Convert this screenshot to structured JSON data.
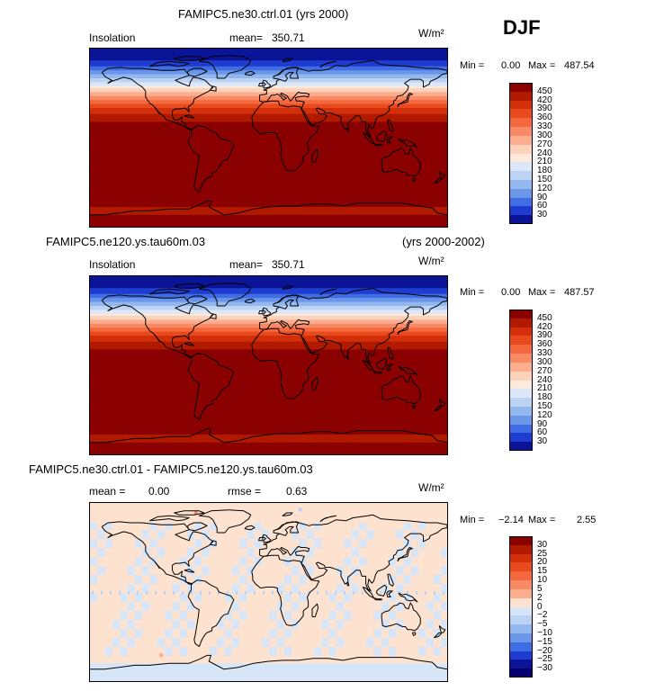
{
  "season": "DJF",
  "panels": [
    {
      "title": "FAMIPC5.ne30.ctrl.01 (yrs 2000)",
      "title_right": "",
      "variable": "Insolation",
      "stat1_label": "mean=",
      "stat1_value": "350.71",
      "stat2_label": "",
      "stat2_value": "",
      "units": "W/m²",
      "min_label": "Min =",
      "min_value": "0.00",
      "max_label": "Max =",
      "max_value": "487.54",
      "colorbar_labels": [
        "450",
        "420",
        "390",
        "360",
        "330",
        "300",
        "270",
        "240",
        "210",
        "180",
        "150",
        "120",
        "90",
        "60",
        "30"
      ],
      "colorbar_colors": [
        "#8b0000",
        "#b21a00",
        "#d22f0a",
        "#e84a1e",
        "#f4683d",
        "#f98a66",
        "#fbad8e",
        "#fcd2ba",
        "#fdeadc",
        "#dce8f8",
        "#bcd3f4",
        "#93b8ef",
        "#6b96ea",
        "#3f6ee4",
        "#1f3cd0",
        "#0b1496"
      ]
    },
    {
      "title": "FAMIPC5.ne120.ys.tau60m.03",
      "title_right": "(yrs 2000-2002)",
      "variable": "Insolation",
      "stat1_label": "mean=",
      "stat1_value": "350.71",
      "stat2_label": "",
      "stat2_value": "",
      "units": "W/m²",
      "min_label": "Min =",
      "min_value": "0.00",
      "max_label": "Max =",
      "max_value": "487.57",
      "colorbar_labels": [
        "450",
        "420",
        "390",
        "360",
        "330",
        "300",
        "270",
        "240",
        "210",
        "180",
        "150",
        "120",
        "90",
        "60",
        "30"
      ],
      "colorbar_colors": [
        "#8b0000",
        "#b21a00",
        "#d22f0a",
        "#e84a1e",
        "#f4683d",
        "#f98a66",
        "#fbad8e",
        "#fcd2ba",
        "#fdeadc",
        "#dce8f8",
        "#bcd3f4",
        "#93b8ef",
        "#6b96ea",
        "#3f6ee4",
        "#1f3cd0",
        "#0b1496"
      ]
    },
    {
      "title": "FAMIPC5.ne30.ctrl.01 - FAMIPC5.ne120.ys.tau60m.03",
      "title_right": "",
      "variable": "",
      "stat1_label": "mean =",
      "stat1_value": "0.00",
      "stat2_label": "rmse =",
      "stat2_value": "0.63",
      "units": "W/m²",
      "min_label": "Min =",
      "min_value": "−2.14",
      "max_label": "Max =",
      "max_value": "2.55",
      "colorbar_labels": [
        "30",
        "25",
        "20",
        "15",
        "10",
        "5",
        "2",
        "0",
        "−2",
        "−5",
        "−10",
        "−15",
        "−20",
        "−25",
        "−30"
      ],
      "colorbar_colors": [
        "#8b0000",
        "#b21a00",
        "#d22f0a",
        "#e84a1e",
        "#f4683d",
        "#f98a66",
        "#fbad8e",
        "#fde2cf",
        "#d6e6f8",
        "#bcd3f4",
        "#93b8ef",
        "#6b96ea",
        "#3f6ee4",
        "#1f3cd0",
        "#0b1496",
        "#05006e"
      ]
    }
  ],
  "chart_data": [
    {
      "type": "heatmap",
      "title": "FAMIPC5.ne30.ctrl.01 (yrs 2000)",
      "variable": "Insolation",
      "season": "DJF",
      "units": "W/m²",
      "mean": 350.71,
      "min": 0.0,
      "max": 487.54,
      "levels": [
        30,
        60,
        90,
        120,
        150,
        180,
        210,
        240,
        270,
        300,
        330,
        360,
        390,
        420,
        450
      ],
      "latitude_bands_north_to_south": [
        {
          "lat": 90,
          "value": 5
        },
        {
          "lat": 80,
          "value": 20
        },
        {
          "lat": 70,
          "value": 75
        },
        {
          "lat": 60,
          "value": 150
        },
        {
          "lat": 50,
          "value": 235
        },
        {
          "lat": 40,
          "value": 315
        },
        {
          "lat": 30,
          "value": 385
        },
        {
          "lat": 20,
          "value": 435
        },
        {
          "lat": 10,
          "value": 465
        },
        {
          "lat": 0,
          "value": 470
        },
        {
          "lat": -30,
          "value": 475
        },
        {
          "lat": -60,
          "value": 465
        },
        {
          "lat": -75,
          "value": 440
        },
        {
          "lat": -90,
          "value": 480
        }
      ]
    },
    {
      "type": "heatmap",
      "title": "FAMIPC5.ne120.ys.tau60m.03 (yrs 2000-2002)",
      "variable": "Insolation",
      "season": "DJF",
      "units": "W/m²",
      "mean": 350.71,
      "min": 0.0,
      "max": 487.57,
      "levels": [
        30,
        60,
        90,
        120,
        150,
        180,
        210,
        240,
        270,
        300,
        330,
        360,
        390,
        420,
        450
      ],
      "latitude_bands_north_to_south": [
        {
          "lat": 90,
          "value": 5
        },
        {
          "lat": 80,
          "value": 20
        },
        {
          "lat": 70,
          "value": 75
        },
        {
          "lat": 60,
          "value": 150
        },
        {
          "lat": 50,
          "value": 235
        },
        {
          "lat": 40,
          "value": 315
        },
        {
          "lat": 30,
          "value": 385
        },
        {
          "lat": 20,
          "value": 435
        },
        {
          "lat": 10,
          "value": 465
        },
        {
          "lat": 0,
          "value": 470
        },
        {
          "lat": -30,
          "value": 475
        },
        {
          "lat": -60,
          "value": 465
        },
        {
          "lat": -75,
          "value": 440
        },
        {
          "lat": -90,
          "value": 480
        }
      ]
    },
    {
      "type": "heatmap",
      "title": "FAMIPC5.ne30.ctrl.01 - FAMIPC5.ne120.ys.tau60m.03",
      "season": "DJF",
      "units": "W/m²",
      "mean": 0.0,
      "rmse": 0.63,
      "min": -2.14,
      "max": 2.55,
      "levels": [
        -30,
        -25,
        -20,
        -15,
        -10,
        -5,
        -2,
        0,
        2,
        5,
        10,
        15,
        20,
        25,
        30
      ]
    }
  ]
}
